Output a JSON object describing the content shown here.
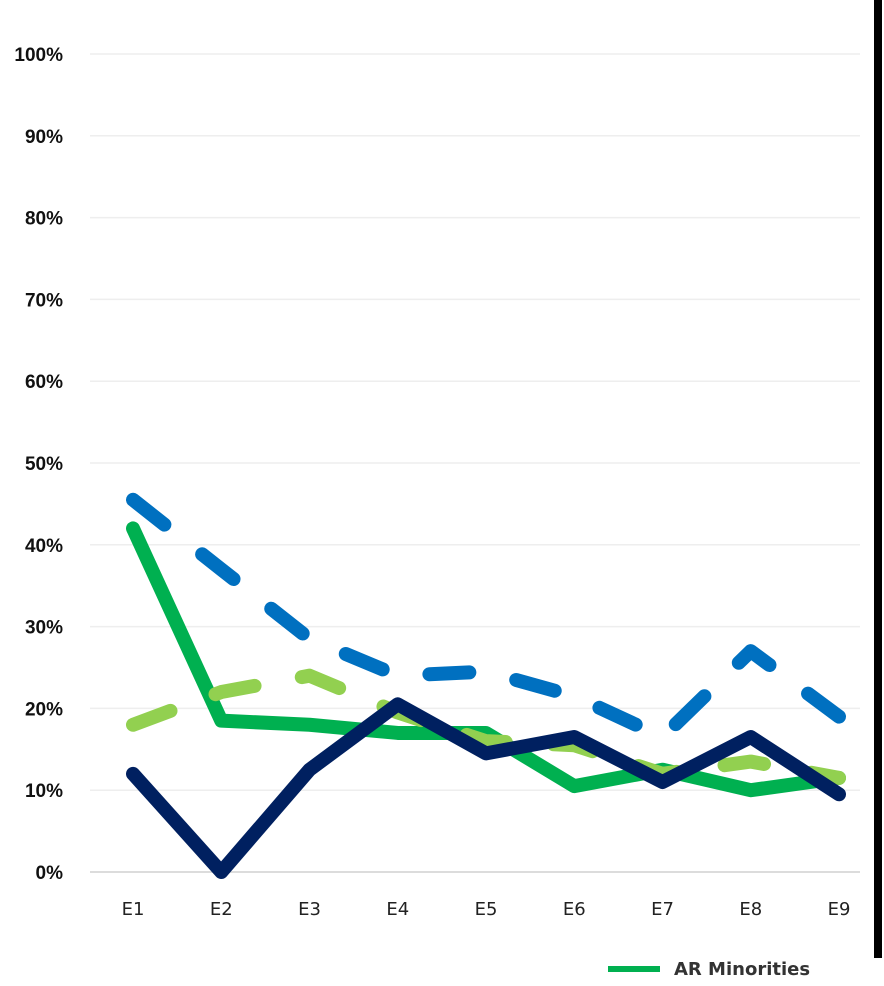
{
  "chart_data": {
    "type": "line",
    "categories": [
      "E1",
      "E2",
      "E3",
      "E4",
      "E5",
      "E6",
      "E7",
      "E8",
      "E9"
    ],
    "y_ticks": [
      "0%",
      "10%",
      "20%",
      "30%",
      "40%",
      "50%",
      "60%",
      "70%",
      "80%",
      "90%",
      "100%"
    ],
    "ylim": [
      0,
      100
    ],
    "grid": "horizontal",
    "series": [
      {
        "values": [
          42,
          18.5,
          18,
          17,
          17,
          10.5,
          12.5,
          10,
          11.5
        ],
        "color": "#00B050",
        "style": "solid"
      },
      {
        "values": [
          45.5,
          37,
          28.5,
          24,
          24.5,
          21.5,
          16.5,
          27,
          19
        ],
        "color": "#0070C0",
        "style": "dashed"
      },
      {
        "values": [
          18,
          22,
          24,
          19.5,
          16,
          15.5,
          12,
          13.5,
          11.5
        ],
        "color": "#92D050",
        "style": "dashed"
      },
      {
        "values": [
          12,
          0,
          12.5,
          20.5,
          14.5,
          16.5,
          11,
          16.5,
          9.5
        ],
        "color": "#002060",
        "style": "solid"
      }
    ]
  },
  "legend": {
    "items": [
      {
        "label": "AR Minorities",
        "color": "#00B050"
      }
    ]
  }
}
